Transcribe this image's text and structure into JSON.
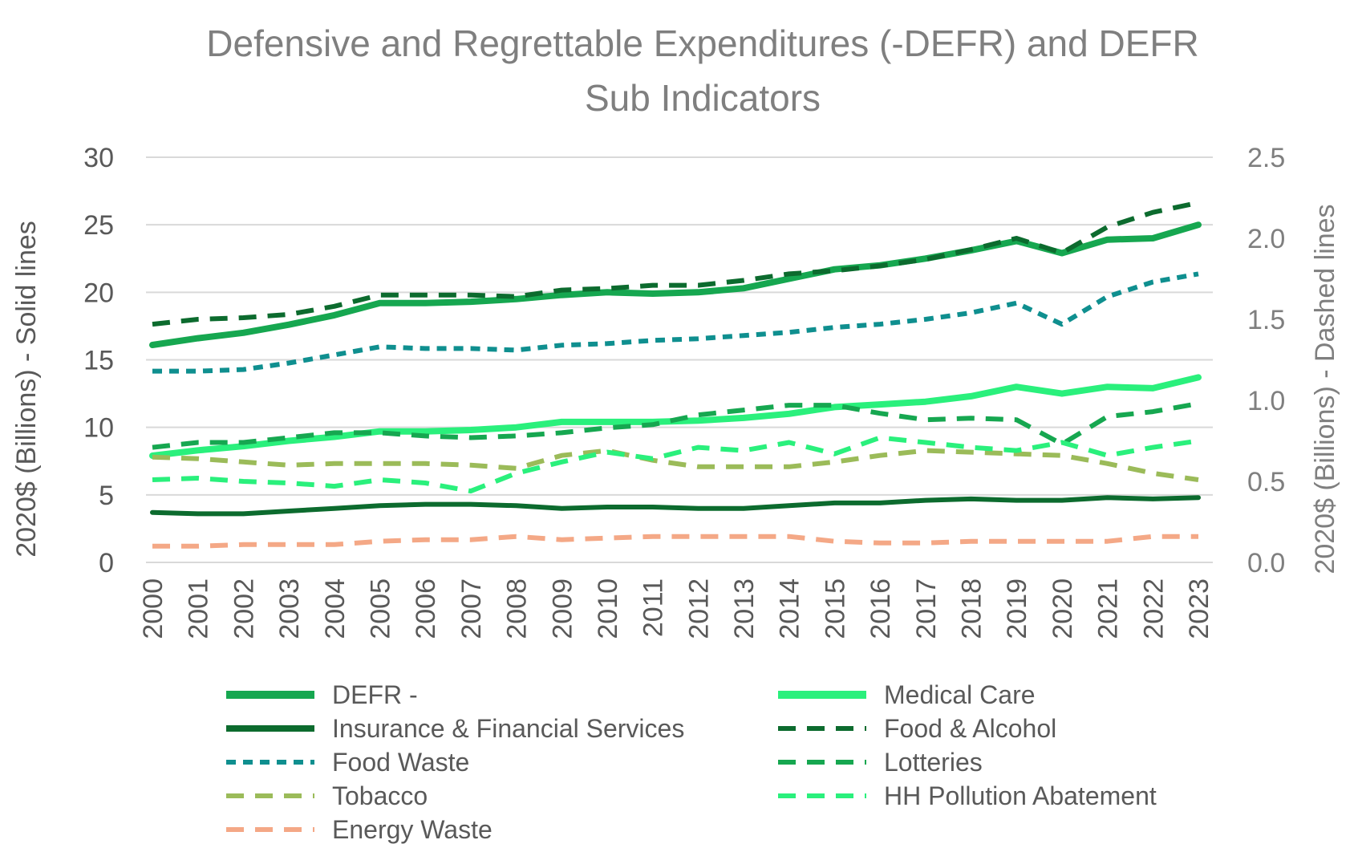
{
  "chart_data": {
    "type": "line",
    "title": [
      "Defensive and Regrettable Expenditures (-DEFR) and DEFR",
      "Sub Indicators"
    ],
    "ylabel": "2020$ (Billions) - Solid lines",
    "y2label": "2020$ (Billions) - Dashed lines",
    "ylim": [
      0,
      30
    ],
    "y2lim": [
      0,
      2.5
    ],
    "yticks": [
      "0",
      "5",
      "10",
      "15",
      "20",
      "25",
      "30"
    ],
    "y2ticks": [
      "0.0",
      "0.5",
      "1.0",
      "1.5",
      "2.0",
      "2.5"
    ],
    "grid": true,
    "legend_position": "bottom",
    "x": [
      "2000",
      "2001",
      "2002",
      "2003",
      "2004",
      "2005",
      "2006",
      "2007",
      "2008",
      "2009",
      "2010",
      "2011",
      "2012",
      "2013",
      "2014",
      "2015",
      "2016",
      "2017",
      "2018",
      "2019",
      "2020",
      "2021",
      "2022",
      "2023"
    ],
    "series": [
      {
        "name": "DEFR -",
        "axis": "left",
        "style": "solid",
        "width": 8,
        "color": "#16a750",
        "values": [
          16.1,
          16.6,
          17.0,
          17.6,
          18.3,
          19.2,
          19.2,
          19.3,
          19.5,
          19.8,
          20.0,
          19.9,
          20.0,
          20.3,
          21.0,
          21.7,
          22.0,
          22.5,
          23.1,
          23.8,
          22.9,
          23.9,
          24.0,
          25.0
        ]
      },
      {
        "name": "Medical Care",
        "axis": "left",
        "style": "solid",
        "width": 8,
        "color": "#2af07c",
        "values": [
          7.9,
          8.3,
          8.6,
          9.0,
          9.3,
          9.7,
          9.7,
          9.8,
          10.0,
          10.4,
          10.4,
          10.4,
          10.5,
          10.7,
          11.0,
          11.5,
          11.7,
          11.9,
          12.3,
          13.0,
          12.5,
          13.0,
          12.9,
          13.7
        ]
      },
      {
        "name": "Insurance & Financial Services",
        "axis": "left",
        "style": "solid",
        "width": 6,
        "color": "#0c6b2e",
        "values": [
          3.7,
          3.6,
          3.6,
          3.8,
          4.0,
          4.2,
          4.3,
          4.3,
          4.2,
          4.0,
          4.1,
          4.1,
          4.0,
          4.0,
          4.2,
          4.4,
          4.4,
          4.6,
          4.7,
          4.6,
          4.6,
          4.8,
          4.7,
          4.8
        ]
      },
      {
        "name": "Food & Alcohol",
        "axis": "right",
        "style": "dash",
        "width": 6,
        "color": "#0c6b2e",
        "values": [
          1.47,
          1.5,
          1.51,
          1.53,
          1.58,
          1.65,
          1.65,
          1.65,
          1.64,
          1.68,
          1.69,
          1.71,
          1.71,
          1.74,
          1.78,
          1.8,
          1.83,
          1.87,
          1.93,
          2.0,
          1.91,
          2.07,
          2.16,
          2.22
        ]
      },
      {
        "name": "Food Waste",
        "axis": "right",
        "style": "dot",
        "width": 6,
        "color": "#0f8f8f",
        "values": [
          1.18,
          1.18,
          1.19,
          1.23,
          1.28,
          1.33,
          1.32,
          1.32,
          1.31,
          1.34,
          1.35,
          1.37,
          1.38,
          1.4,
          1.42,
          1.45,
          1.47,
          1.5,
          1.54,
          1.6,
          1.47,
          1.64,
          1.73,
          1.78
        ]
      },
      {
        "name": "Lotteries",
        "axis": "right",
        "style": "dash",
        "width": 6,
        "color": "#16a750",
        "values": [
          0.71,
          0.74,
          0.74,
          0.77,
          0.8,
          0.8,
          0.78,
          0.77,
          0.78,
          0.8,
          0.83,
          0.85,
          0.91,
          0.94,
          0.97,
          0.97,
          0.92,
          0.88,
          0.89,
          0.88,
          0.73,
          0.9,
          0.93,
          0.98
        ]
      },
      {
        "name": "Tobacco",
        "axis": "right",
        "style": "dash",
        "width": 6,
        "color": "#9bbb59",
        "values": [
          0.65,
          0.64,
          0.62,
          0.6,
          0.61,
          0.61,
          0.61,
          0.6,
          0.58,
          0.66,
          0.69,
          0.63,
          0.59,
          0.59,
          0.59,
          0.62,
          0.66,
          0.69,
          0.68,
          0.67,
          0.66,
          0.61,
          0.55,
          0.51
        ]
      },
      {
        "name": "HH Pollution Abatement",
        "axis": "right",
        "style": "dash",
        "width": 6,
        "color": "#2af07c",
        "values": [
          0.51,
          0.52,
          0.5,
          0.49,
          0.47,
          0.51,
          0.49,
          0.44,
          0.55,
          0.62,
          0.68,
          0.64,
          0.71,
          0.69,
          0.74,
          0.67,
          0.77,
          0.74,
          0.71,
          0.69,
          0.74,
          0.66,
          0.71,
          0.75
        ]
      },
      {
        "name": "Energy Waste",
        "axis": "right",
        "style": "dash",
        "width": 6,
        "color": "#f4a886",
        "values": [
          0.1,
          0.1,
          0.11,
          0.11,
          0.11,
          0.13,
          0.14,
          0.14,
          0.16,
          0.14,
          0.15,
          0.16,
          0.16,
          0.16,
          0.16,
          0.13,
          0.12,
          0.12,
          0.13,
          0.13,
          0.13,
          0.13,
          0.16,
          0.16
        ]
      }
    ]
  }
}
